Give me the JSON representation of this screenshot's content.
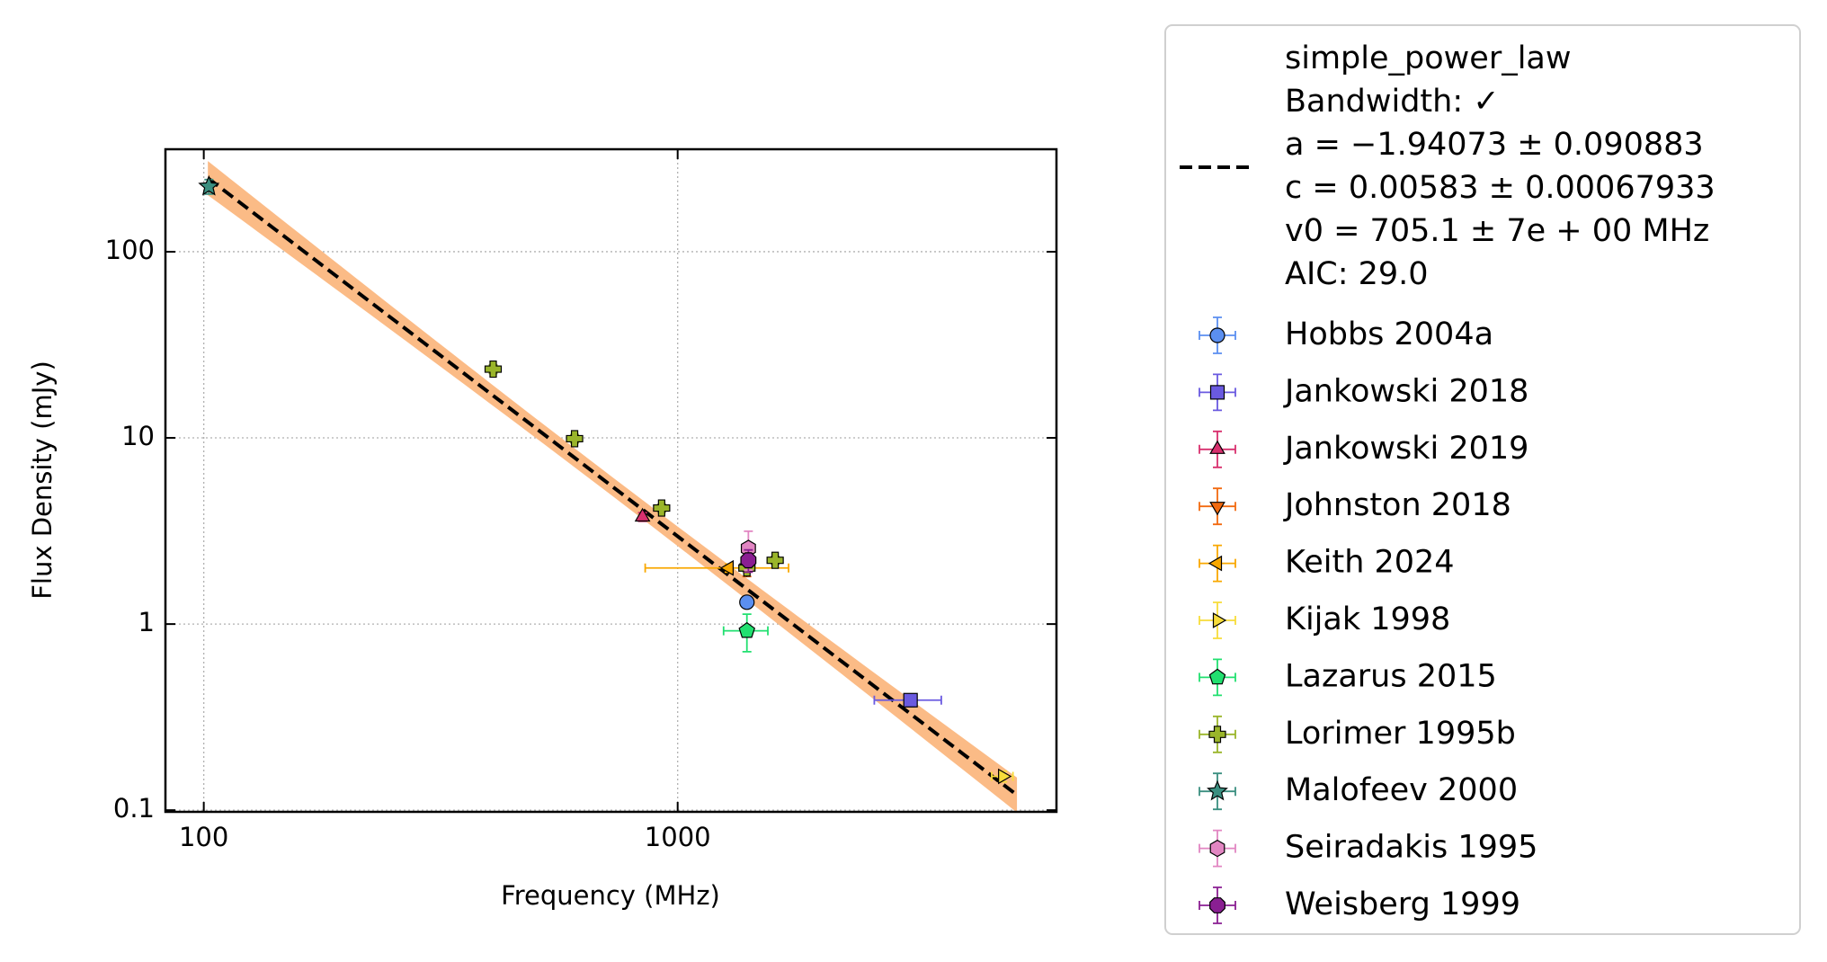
{
  "chart_data": {
    "type": "scatter",
    "xlabel": "Frequency (MHz)",
    "ylabel": "Flux Density (mJy)",
    "log_x": true,
    "log_y": true,
    "grid": true,
    "legend": "outside right",
    "xlim": [
      83,
      6300
    ],
    "ylim": [
      0.098,
      355
    ],
    "xticks": [
      100,
      1000
    ],
    "yticks": [
      0.1,
      1,
      10,
      100
    ],
    "fit": {
      "label": [
        "simple_power_law",
        "Bandwidth: ✓",
        "a = −1.94073 ± 0.090883",
        "c = 0.00583 ± 0.00067933",
        "v0 = 705.1 ± 7e + 00 MHz",
        "AIC: 29.0"
      ],
      "a": -1.94073,
      "a_err": 0.090883,
      "c": 0.00583,
      "c_err": 0.00067933,
      "v0": 705.1,
      "x_range": [
        102,
        5200
      ],
      "color": "#000000",
      "band_color": "#fbbb86"
    },
    "series": [
      {
        "name": "Hobbs 2004a",
        "color": "#5b8ff0",
        "marker": "circle",
        "x": [
          1400
        ],
        "values": [
          1.31
        ],
        "xerr": [
          null
        ],
        "yerr": [
          0.07
        ]
      },
      {
        "name": "Jankowski 2018",
        "color": "#6a5ae0",
        "marker": "square",
        "x": [
          3100
        ],
        "values": [
          0.39
        ],
        "xerr": [
          500
        ],
        "yerr": [
          0.03
        ]
      },
      {
        "name": "Jankowski 2019",
        "color": "#d8306e",
        "marker": "triangle-up",
        "x": [
          843
        ],
        "values": [
          3.76
        ],
        "xerr": [
          null
        ],
        "yerr": [
          0.2
        ]
      },
      {
        "name": "Johnston 2018",
        "color": "#f26a10",
        "marker": "triangle-down",
        "x": [
          1400
        ],
        "values": [
          2.0
        ],
        "xerr": [
          null
        ],
        "yerr": [
          0.2
        ]
      },
      {
        "name": "Keith 2024",
        "color": "#f9a800",
        "marker": "triangle-left",
        "x": [
          1284
        ],
        "values": [
          2.0
        ],
        "xerr": [
          430
        ],
        "yerr": [
          0.1
        ]
      },
      {
        "name": "Kijak 1998",
        "color": "#f7dc3a",
        "marker": "triangle-right",
        "x": [
          4850
        ],
        "values": [
          0.152
        ],
        "xerr": [
          250
        ],
        "yerr": [
          0.01
        ]
      },
      {
        "name": "Lazarus 2015",
        "color": "#22e070",
        "marker": "pentagon",
        "x": [
          1400
        ],
        "values": [
          0.92
        ],
        "xerr": [
          150
        ],
        "yerr": [
          0.21
        ]
      },
      {
        "name": "Lorimer 1995b",
        "color": "#9ab52a",
        "marker": "plus",
        "x": [
          408,
          606,
          925,
          1400,
          1606
        ],
        "values": [
          23.4,
          9.9,
          4.2,
          2.0,
          2.2
        ],
        "xerr": [
          null,
          null,
          null,
          null,
          null
        ],
        "yerr": [
          1.2,
          0.5,
          0.2,
          0.1,
          0.1
        ]
      },
      {
        "name": "Malofeev 2000",
        "color": "#3b8f80",
        "marker": "star",
        "x": [
          102.5
        ],
        "values": [
          224
        ],
        "xerr": [
          null
        ],
        "yerr": [
          20
        ]
      },
      {
        "name": "Seiradakis 1995",
        "color": "#e286c2",
        "marker": "hexagon",
        "x": [
          1410
        ],
        "values": [
          2.55
        ],
        "xerr": [
          null
        ],
        "yerr": [
          0.6
        ]
      },
      {
        "name": "Weisberg 1999",
        "color": "#8a1f92",
        "marker": "octagon",
        "x": [
          1410
        ],
        "values": [
          2.2
        ],
        "xerr": [
          null
        ],
        "yerr": [
          0.3
        ]
      }
    ]
  }
}
